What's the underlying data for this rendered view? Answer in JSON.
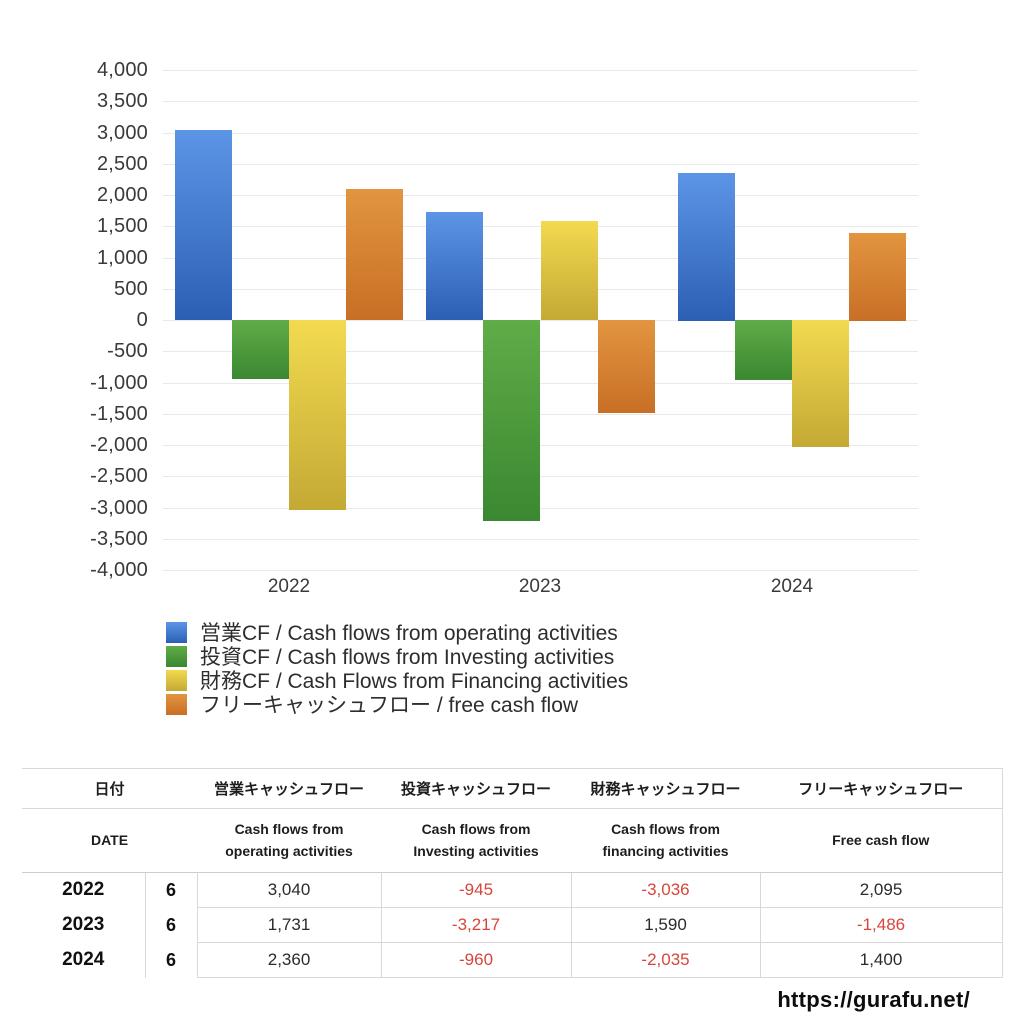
{
  "chart_data": {
    "type": "bar",
    "categories": [
      "2022",
      "2023",
      "2024"
    ],
    "series": [
      {
        "name": "営業CF / Cash flows from operating activities",
        "values": [
          3040,
          1731,
          2360
        ],
        "color_top": "#5d95e6",
        "color_bottom": "#2c5fb4"
      },
      {
        "name": "投資CF / Cash flows from Investing activities",
        "values": [
          -945,
          -3217,
          -960
        ],
        "color_top": "#60ac48",
        "color_bottom": "#3a8831"
      },
      {
        "name": "財務CF / Cash Flows from Financing activities",
        "values": [
          -3036,
          1590,
          -2035
        ],
        "color_top": "#f2da50",
        "color_bottom": "#c4a934"
      },
      {
        "name": "フリーキャッシュフロー / free cash flow",
        "values": [
          2095,
          -1486,
          1400
        ],
        "color_top": "#e2953f",
        "color_bottom": "#c86f26"
      }
    ],
    "title": "",
    "xlabel": "",
    "ylabel": "",
    "ylim": [
      -4000,
      4000
    ],
    "ytick_step": 500,
    "grid": true,
    "legend_position": "bottom-left",
    "gridline_color": "#e9e9e9"
  },
  "table": {
    "header_jp": {
      "date": "日付",
      "operating": "営業キャッシュフロー",
      "investing": "投資キャッシュフロー",
      "financing": "財務キャッシュフロー",
      "free": "フリーキャッシュフロー"
    },
    "header_en": {
      "date": "DATE",
      "operating": "Cash flows from\noperating activities",
      "investing": "Cash flows from\nInvesting activities",
      "financing": "Cash flows from\nfinancing activities",
      "free": "Free cash flow"
    },
    "rows": [
      {
        "year": "2022",
        "month": "6",
        "values": [
          "3,040",
          "-945",
          "-3,036",
          "2,095"
        ]
      },
      {
        "year": "2023",
        "month": "6",
        "values": [
          "1,731",
          "-3,217",
          "1,590",
          "-1,486"
        ]
      },
      {
        "year": "2024",
        "month": "6",
        "values": [
          "2,360",
          "-960",
          "-2,035",
          "1,400"
        ]
      }
    ],
    "negative_color": "#d9453a"
  },
  "footer": {
    "url": "https://gurafu.net/"
  }
}
